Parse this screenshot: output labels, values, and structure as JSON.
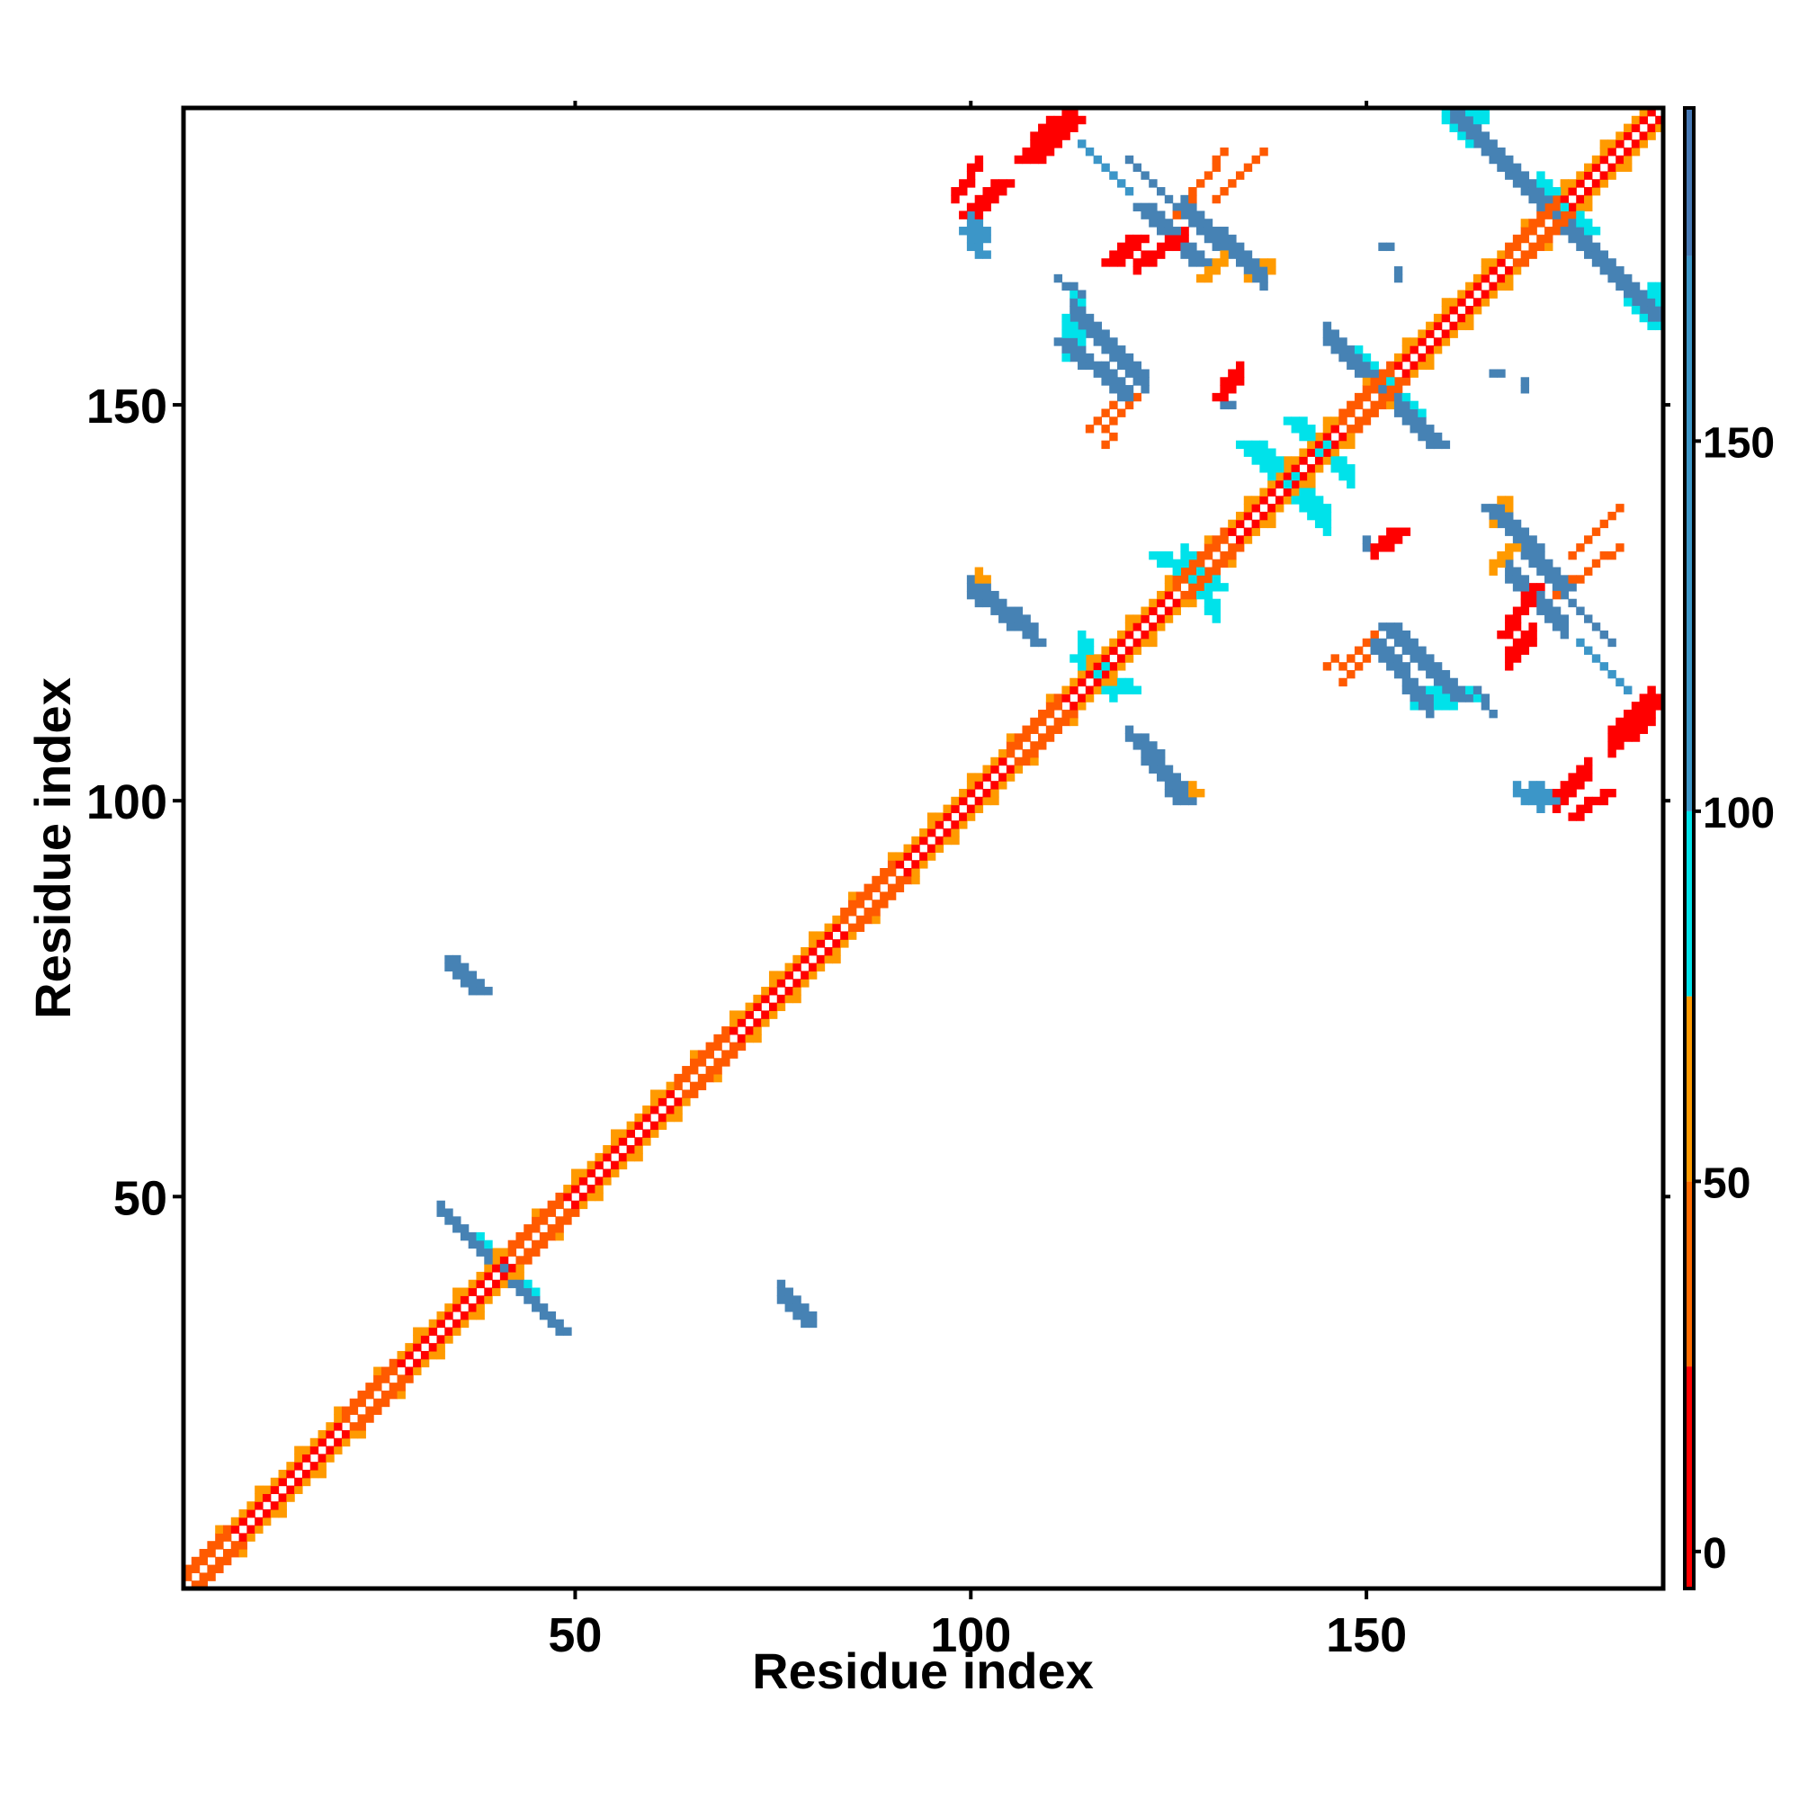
{
  "chart_data": {
    "type": "heatmap",
    "title": "",
    "xlabel": "Residue index",
    "ylabel": "Residue index",
    "xlim": [
      0.5,
      187.5
    ],
    "ylim": [
      0.5,
      187.5
    ],
    "x_ticks": [
      50,
      100,
      150
    ],
    "y_ticks": [
      50,
      100,
      150
    ],
    "colorbar": {
      "ticks": [
        0,
        50,
        100,
        150
      ],
      "range": [
        -5,
        195
      ],
      "bands": [
        {
          "from": -5,
          "to": 25,
          "color": "#ff0000"
        },
        {
          "from": 25,
          "to": 50,
          "color": "#ff6b00"
        },
        {
          "from": 50,
          "to": 75,
          "color": "#ff9a00"
        },
        {
          "from": 75,
          "to": 100,
          "color": "#00e2ea"
        },
        {
          "from": 100,
          "to": 175,
          "color": "#3c96c8"
        },
        {
          "from": 175,
          "to": 195,
          "color": "#4678b4"
        }
      ]
    },
    "colors": {
      "red": "#ff0000",
      "orange_red": "#ff5a00",
      "orange": "#ff9a00",
      "cyan": "#00e2ea",
      "light_blue": "#3c96c8",
      "steel_blue": "#4682b4"
    },
    "diagonal": {
      "start": 1,
      "end": 187
    },
    "segments": [
      {
        "x1": 33,
        "y1": 48,
        "x2": 46,
        "y2": 35,
        "w": 2,
        "c": "steel_blue"
      },
      {
        "x1": 38,
        "y1": 43,
        "x2": 42,
        "y2": 39,
        "w": 3,
        "c": "cyan"
      },
      {
        "x1": 34,
        "y1": 79,
        "x2": 37,
        "y2": 76,
        "w": 2,
        "c": "steel_blue"
      },
      {
        "x1": 76,
        "y1": 38,
        "x2": 80,
        "y2": 34,
        "w": 2,
        "c": "steel_blue"
      },
      {
        "x1": 100,
        "y1": 126,
        "x2": 108,
        "y2": 120,
        "w": 3,
        "c": "steel_blue"
      },
      {
        "x1": 100,
        "y1": 127,
        "x2": 102,
        "y2": 125,
        "w": 2,
        "c": "cyan"
      },
      {
        "x1": 101,
        "y1": 129,
        "x2": 102,
        "y2": 127,
        "w": 1,
        "c": "orange"
      },
      {
        "x1": 114,
        "y1": 119,
        "x2": 118,
        "y2": 113,
        "w": 3,
        "c": "cyan"
      },
      {
        "x1": 120,
        "y1": 108,
        "x2": 127,
        "y2": 100,
        "w": 2,
        "c": "steel_blue"
      },
      {
        "x1": 127,
        "y1": 101,
        "x2": 129,
        "y2": 101,
        "w": 1,
        "c": "orange"
      },
      {
        "x1": 127,
        "y1": 130,
        "x2": 131,
        "y2": 123,
        "w": 3,
        "c": "cyan"
      },
      {
        "x1": 113,
        "y1": 161,
        "x2": 122,
        "y2": 152,
        "w": 3,
        "c": "steel_blue"
      },
      {
        "x1": 113,
        "y1": 163,
        "x2": 115,
        "y2": 160,
        "w": 2,
        "c": "cyan"
      },
      {
        "x1": 117,
        "y1": 147,
        "x2": 121,
        "y2": 151,
        "w": 1,
        "c": "orange_red"
      },
      {
        "x1": 132,
        "y1": 152,
        "x2": 134,
        "y2": 154,
        "w": 2,
        "c": "red"
      },
      {
        "x1": 132,
        "y1": 150,
        "x2": 133,
        "y2": 150,
        "w": 1,
        "c": "steel_blue"
      },
      {
        "x1": 127,
        "y1": 174,
        "x2": 137,
        "y2": 165,
        "w": 3,
        "c": "steel_blue"
      },
      {
        "x1": 135,
        "y1": 166,
        "x2": 138,
        "y2": 167,
        "w": 2,
        "c": "orange"
      },
      {
        "x1": 121,
        "y1": 167,
        "x2": 127,
        "y2": 171,
        "w": 2,
        "c": "red"
      },
      {
        "x1": 131,
        "y1": 176,
        "x2": 137,
        "y2": 182,
        "w": 1,
        "c": "orange_red"
      },
      {
        "x1": 120,
        "y1": 181,
        "x2": 126,
        "y2": 175,
        "w": 1,
        "c": "steel_blue"
      },
      {
        "x1": 108,
        "y1": 182,
        "x2": 113,
        "y2": 186,
        "w": 3,
        "c": "red"
      },
      {
        "x1": 98,
        "y1": 176,
        "x2": 101,
        "y2": 180,
        "w": 2,
        "c": "red"
      },
      {
        "x1": 100,
        "y1": 173,
        "x2": 102,
        "y2": 171,
        "w": 2,
        "c": "light_blue"
      },
      {
        "x1": 114,
        "y1": 164,
        "x2": 111,
        "y2": 166,
        "w": 1,
        "c": "steel_blue"
      },
      {
        "x1": 117,
        "y1": 145,
        "x2": 118,
        "y2": 146,
        "w": 1,
        "c": "orange_red"
      },
      {
        "x1": 139,
        "y1": 140,
        "x2": 145,
        "y2": 134,
        "w": 4,
        "c": "cyan"
      },
      {
        "x1": 143,
        "y1": 145,
        "x2": 148,
        "y2": 140,
        "w": 3,
        "c": "cyan"
      },
      {
        "x1": 145,
        "y1": 158,
        "x2": 156,
        "y2": 147,
        "w": 3,
        "c": "steel_blue"
      },
      {
        "x1": 149,
        "y1": 155,
        "x2": 153,
        "y2": 151,
        "w": 3,
        "c": "cyan"
      },
      {
        "x1": 161,
        "y1": 186,
        "x2": 186,
        "y2": 161,
        "w": 3,
        "c": "steel_blue"
      },
      {
        "x1": 160,
        "y1": 186,
        "x2": 165,
        "y2": 186,
        "w": 2,
        "c": "cyan"
      },
      {
        "x1": 172,
        "y1": 176,
        "x2": 176,
        "y2": 172,
        "w": 4,
        "c": "cyan"
      },
      {
        "x1": 183,
        "y1": 163,
        "x2": 186,
        "y2": 160,
        "w": 2,
        "c": "cyan"
      },
      {
        "x1": 168,
        "y1": 128,
        "x2": 175,
        "y2": 121,
        "w": 3,
        "c": "steel_blue"
      },
      {
        "x1": 166,
        "y1": 129,
        "x2": 169,
        "y2": 132,
        "w": 2,
        "c": "orange"
      },
      {
        "x1": 151,
        "y1": 119,
        "x2": 158,
        "y2": 111,
        "w": 3,
        "c": "steel_blue"
      },
      {
        "x1": 156,
        "y1": 112,
        "x2": 161,
        "y2": 112,
        "w": 3,
        "c": "cyan"
      },
      {
        "x1": 147,
        "y1": 115,
        "x2": 151,
        "y2": 119,
        "w": 1,
        "c": "orange_red"
      },
      {
        "x1": 168,
        "y1": 117,
        "x2": 171,
        "y2": 120,
        "w": 3,
        "c": "red"
      },
      {
        "x1": 174,
        "y1": 126,
        "x2": 182,
        "y2": 132,
        "w": 1,
        "c": "orange_red"
      },
      {
        "x1": 177,
        "y1": 120,
        "x2": 183,
        "y2": 114,
        "w": 1,
        "c": "light_blue"
      },
      {
        "x1": 181,
        "y1": 106,
        "x2": 186,
        "y2": 111,
        "w": 4,
        "c": "red"
      },
      {
        "x1": 174,
        "y1": 99,
        "x2": 178,
        "y2": 103,
        "w": 3,
        "c": "red"
      },
      {
        "x1": 169,
        "y1": 101,
        "x2": 172,
        "y2": 99,
        "w": 2,
        "c": "light_blue"
      },
      {
        "x1": 151,
        "y1": 131,
        "x2": 153,
        "y2": 133,
        "w": 2,
        "c": "red"
      },
      {
        "x1": 150,
        "y1": 132,
        "x2": 151,
        "y2": 131,
        "w": 2,
        "c": "light_blue"
      },
      {
        "x1": 166,
        "y1": 154,
        "x2": 167,
        "y2": 154,
        "w": 1,
        "c": "steel_blue"
      },
      {
        "x1": 152,
        "y1": 170,
        "x2": 153,
        "y2": 170,
        "w": 1,
        "c": "steel_blue"
      }
    ]
  }
}
